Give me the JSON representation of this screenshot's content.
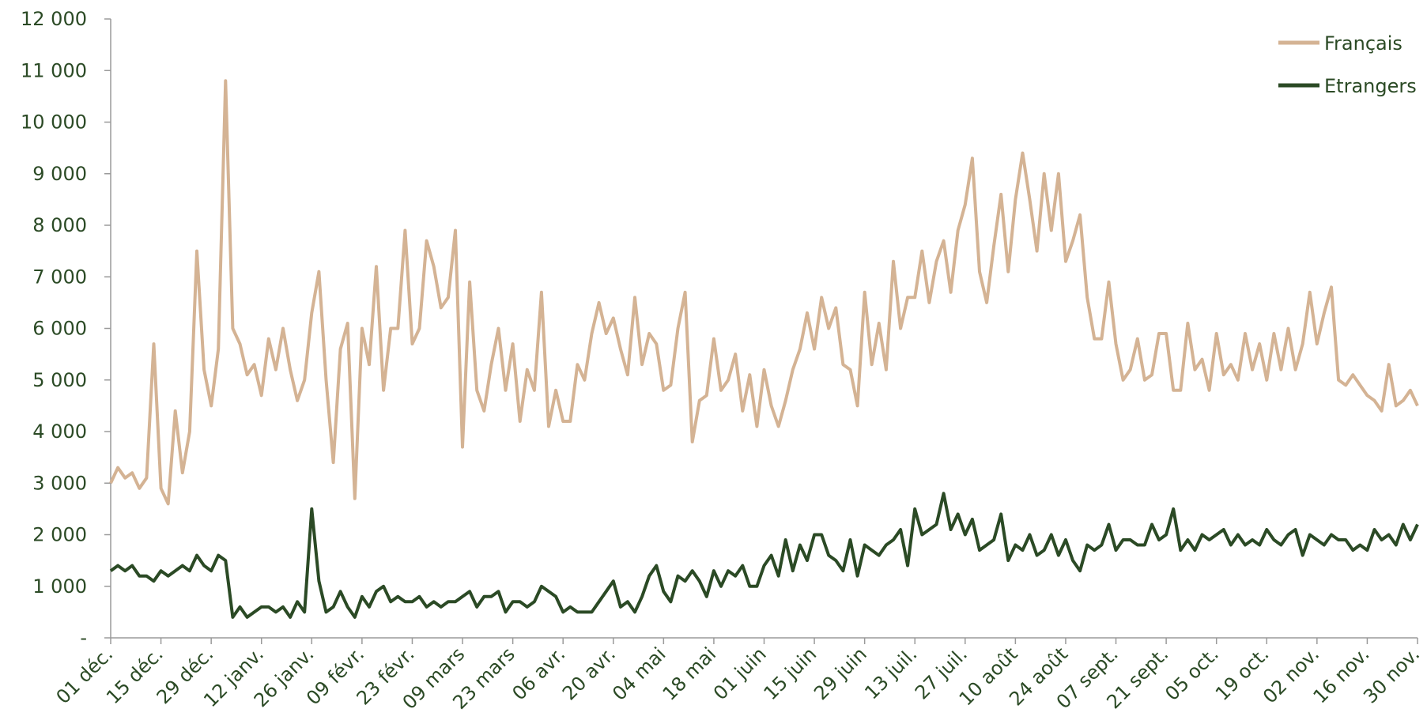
{
  "chart_data": {
    "type": "line",
    "categories": [
      "01 déc.",
      null,
      null,
      null,
      null,
      null,
      null,
      "15 déc.",
      null,
      null,
      null,
      null,
      null,
      null,
      "29 déc.",
      null,
      null,
      null,
      null,
      null,
      null,
      "12 janv.",
      null,
      null,
      null,
      null,
      null,
      null,
      "26 janv.",
      null,
      null,
      null,
      null,
      null,
      null,
      "09 févr.",
      null,
      null,
      null,
      null,
      null,
      null,
      "23 févr.",
      null,
      null,
      null,
      null,
      null,
      null,
      "09 mars",
      null,
      null,
      null,
      null,
      null,
      null,
      "23 mars",
      null,
      null,
      null,
      null,
      null,
      null,
      "06 avr.",
      null,
      null,
      null,
      null,
      null,
      null,
      "20 avr.",
      null,
      null,
      null,
      null,
      null,
      null,
      "04 mai",
      null,
      null,
      null,
      null,
      null,
      null,
      "18 mai",
      null,
      null,
      null,
      null,
      null,
      null,
      "01 juin",
      null,
      null,
      null,
      null,
      null,
      null,
      "15 juin",
      null,
      null,
      null,
      null,
      null,
      null,
      "29 juin",
      null,
      null,
      null,
      null,
      null,
      null,
      "13 juil.",
      null,
      null,
      null,
      null,
      null,
      null,
      "27 juil.",
      null,
      null,
      null,
      null,
      null,
      null,
      "10 août",
      null,
      null,
      null,
      null,
      null,
      null,
      "24 août",
      null,
      null,
      null,
      null,
      null,
      null,
      "07 sept.",
      null,
      null,
      null,
      null,
      null,
      null,
      "21 sept.",
      null,
      null,
      null,
      null,
      null,
      null,
      "05 oct.",
      null,
      null,
      null,
      null,
      null,
      null,
      "19 oct.",
      null,
      null,
      null,
      null,
      null,
      null,
      "02 nov.",
      null,
      null,
      null,
      null,
      null,
      null,
      "16 nov.",
      null,
      null,
      null,
      null,
      null,
      null,
      "30 nov."
    ],
    "series": [
      {
        "name": "Français",
        "color": "#d4b394",
        "values": [
          3000,
          3300,
          3100,
          3200,
          2900,
          3100,
          5700,
          2900,
          2600,
          4400,
          3200,
          4000,
          7500,
          5200,
          4500,
          5600,
          10800,
          6000,
          5700,
          5100,
          5300,
          4700,
          5800,
          5200,
          6000,
          5200,
          4600,
          5000,
          6300,
          7100,
          5000,
          3400,
          5600,
          6100,
          2700,
          6000,
          5300,
          7200,
          4800,
          6000,
          6000,
          7900,
          5700,
          6000,
          7700,
          7200,
          6400,
          6600,
          7900,
          3700,
          6900,
          4800,
          4400,
          5300,
          6000,
          4800,
          5700,
          4200,
          5200,
          4800,
          6700,
          4100,
          4800,
          4200,
          4200,
          5300,
          5000,
          5900,
          6500,
          5900,
          6200,
          5600,
          5100,
          6600,
          5300,
          5900,
          5700,
          4800,
          4900,
          6000,
          6700,
          3800,
          4600,
          4700,
          5800,
          4800,
          5000,
          5500,
          4400,
          5100,
          4100,
          5200,
          4500,
          4100,
          4600,
          5200,
          5600,
          6300,
          5600,
          6600,
          6000,
          6400,
          5300,
          5200,
          4500,
          6700,
          5300,
          6100,
          5200,
          7300,
          6000,
          6600,
          6600,
          7500,
          6500,
          7300,
          7700,
          6700,
          7900,
          8400,
          9300,
          7100,
          6500,
          7600,
          8600,
          7100,
          8500,
          9400,
          8500,
          7500,
          9000,
          7900,
          9000,
          7300,
          7700,
          8200,
          6600,
          5800,
          5800,
          6900,
          5700,
          5000,
          5200,
          5800,
          5000,
          5100,
          5900,
          5900,
          4800,
          4800,
          6100,
          5200,
          5400,
          4800,
          5900,
          5100,
          5300,
          5000,
          5900,
          5200,
          5700,
          5000,
          5900,
          5200,
          6000,
          5200,
          5700,
          6700,
          5700,
          6300,
          6800,
          5000,
          4900,
          5100,
          4900,
          4700,
          4600,
          4400,
          5300,
          4500,
          4600,
          4800,
          4500
        ]
      },
      {
        "name": "Etrangers",
        "color": "#2b4a25",
        "values": [
          1300,
          1400,
          1300,
          1400,
          1200,
          1200,
          1100,
          1300,
          1200,
          1300,
          1400,
          1300,
          1600,
          1400,
          1300,
          1600,
          1500,
          400,
          600,
          400,
          500,
          600,
          600,
          500,
          600,
          400,
          700,
          500,
          2500,
          1100,
          500,
          600,
          900,
          600,
          400,
          800,
          600,
          900,
          1000,
          700,
          800,
          700,
          700,
          800,
          600,
          700,
          600,
          700,
          700,
          800,
          900,
          600,
          800,
          800,
          900,
          500,
          700,
          700,
          600,
          700,
          1000,
          900,
          800,
          500,
          600,
          500,
          500,
          500,
          700,
          900,
          1100,
          600,
          700,
          500,
          800,
          1200,
          1400,
          900,
          700,
          1200,
          1100,
          1300,
          1100,
          800,
          1300,
          1000,
          1300,
          1200,
          1400,
          1000,
          1000,
          1400,
          1600,
          1200,
          1900,
          1300,
          1800,
          1500,
          2000,
          2000,
          1600,
          1500,
          1300,
          1900,
          1200,
          1800,
          1700,
          1600,
          1800,
          1900,
          2100,
          1400,
          2500,
          2000,
          2100,
          2200,
          2800,
          2100,
          2400,
          2000,
          2300,
          1700,
          1800,
          1900,
          2400,
          1500,
          1800,
          1700,
          2000,
          1600,
          1700,
          2000,
          1600,
          1900,
          1500,
          1300,
          1800,
          1700,
          1800,
          2200,
          1700,
          1900,
          1900,
          1800,
          1800,
          2200,
          1900,
          2000,
          2500,
          1700,
          1900,
          1700,
          2000,
          1900,
          2000,
          2100,
          1800,
          2000,
          1800,
          1900,
          1800,
          2100,
          1900,
          1800,
          2000,
          2100,
          1600,
          2000,
          1900,
          1800,
          2000,
          1900,
          1900,
          1700,
          1800,
          1700,
          2100,
          1900,
          2000,
          1800,
          2200,
          1900,
          2200
        ]
      }
    ],
    "ylim": [
      0,
      12000
    ],
    "yticks": [
      {
        "value": 0,
        "label": "-"
      },
      {
        "value": 1000,
        "label": "1 000"
      },
      {
        "value": 2000,
        "label": "2 000"
      },
      {
        "value": 3000,
        "label": "3 000"
      },
      {
        "value": 4000,
        "label": "4 000"
      },
      {
        "value": 5000,
        "label": "5 000"
      },
      {
        "value": 6000,
        "label": "6 000"
      },
      {
        "value": 7000,
        "label": "7 000"
      },
      {
        "value": 8000,
        "label": "8 000"
      },
      {
        "value": 9000,
        "label": "9 000"
      },
      {
        "value": 10000,
        "label": "10 000"
      },
      {
        "value": 11000,
        "label": "11 000"
      },
      {
        "value": 12000,
        "label": "12 000"
      }
    ],
    "grid": false,
    "legend": "top-right"
  }
}
